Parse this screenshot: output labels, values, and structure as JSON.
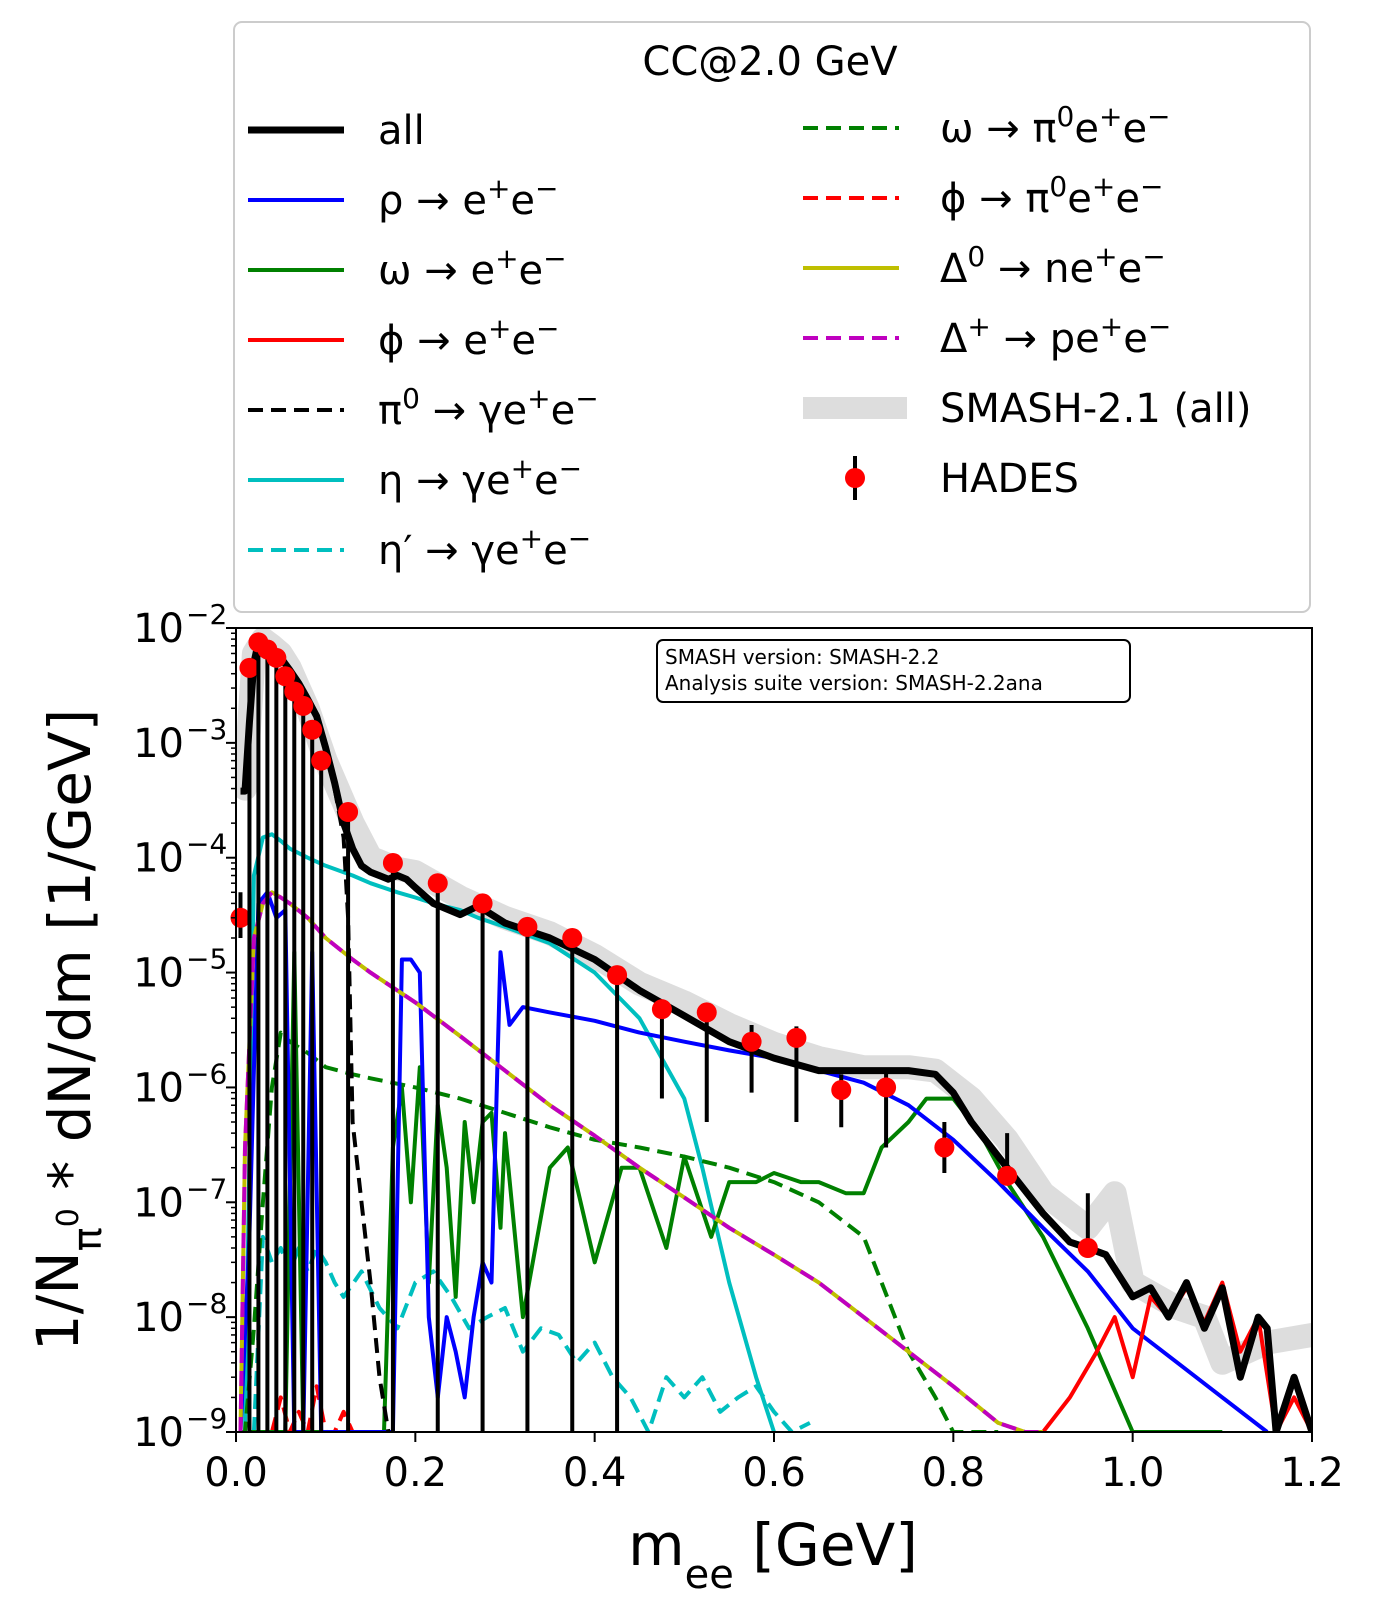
{
  "chart_data": {
    "type": "line",
    "title": "CC@2.0 GeV",
    "xlabel": "m_ee [GeV]",
    "ylabel": "1/N_π0 * dN/dm [1/GeV]",
    "xlim": [
      0.0,
      1.2
    ],
    "ylim_log10": [
      -9,
      -2
    ],
    "yscale": "log",
    "x_ticks": [
      "0.0",
      "0.2",
      "0.4",
      "0.6",
      "0.8",
      "1.0",
      "1.2"
    ],
    "y_ticks": [
      "-9",
      "-8",
      "-7",
      "-6",
      "-5",
      "-4",
      "-3",
      "-2"
    ],
    "legend_placement": "above plot, two columns",
    "annotation": [
      "SMASH version: SMASH-2.2",
      "Analysis suite version: SMASH-2.2ana"
    ],
    "series": [
      {
        "key": "smash21",
        "name": "SMASH-2.1 (all)",
        "color": "#dddddd",
        "style": "band",
        "x": [
          0.01,
          0.02,
          0.03,
          0.04,
          0.05,
          0.06,
          0.08,
          0.1,
          0.13,
          0.15,
          0.18,
          0.2,
          0.25,
          0.3,
          0.35,
          0.4,
          0.45,
          0.5,
          0.55,
          0.6,
          0.65,
          0.7,
          0.75,
          0.78,
          0.82,
          0.86,
          0.9,
          0.95,
          0.98,
          1.0,
          1.05,
          1.08,
          1.1,
          1.15,
          1.2
        ],
        "y": [
          0.0004,
          0.006,
          0.008,
          0.007,
          0.006,
          0.0045,
          0.002,
          0.0007,
          0.0002,
          0.0001,
          8e-05,
          7.5e-05,
          4.5e-05,
          3e-05,
          2.2e-05,
          1.4e-05,
          8e-06,
          5.5e-06,
          3.5e-06,
          2.4e-06,
          1.8e-06,
          1.5e-06,
          1.5e-06,
          1.4e-06,
          8e-07,
          3.5e-07,
          1.2e-07,
          6e-08,
          1.2e-07,
          2e-08,
          1.2e-08,
          1e-08,
          4e-09,
          6e-09,
          7e-09
        ]
      },
      {
        "key": "all",
        "name": "all",
        "color": "#000000",
        "style": "solid-thick",
        "x": [
          0.005,
          0.01,
          0.015,
          0.02,
          0.025,
          0.03,
          0.04,
          0.05,
          0.06,
          0.07,
          0.08,
          0.09,
          0.1,
          0.11,
          0.12,
          0.13,
          0.14,
          0.15,
          0.17,
          0.18,
          0.19,
          0.2,
          0.22,
          0.25,
          0.27,
          0.3,
          0.35,
          0.4,
          0.45,
          0.5,
          0.55,
          0.6,
          0.65,
          0.7,
          0.75,
          0.78,
          0.8,
          0.82,
          0.86,
          0.9,
          0.93,
          0.95,
          0.97,
          1.0,
          1.02,
          1.04,
          1.06,
          1.08,
          1.1,
          1.12,
          1.14,
          1.15,
          1.16,
          1.18,
          1.2
        ],
        "y": [
          0.00038,
          0.00038,
          0.0015,
          0.005,
          0.0075,
          0.0075,
          0.0065,
          0.0055,
          0.0043,
          0.0033,
          0.0024,
          0.0017,
          0.0009,
          0.00045,
          0.0002,
          0.00012,
          8.5e-05,
          7.5e-05,
          6.5e-05,
          7e-05,
          6.5e-05,
          5.5e-05,
          4e-05,
          3.2e-05,
          3.8e-05,
          2.7e-05,
          2e-05,
          1.3e-05,
          7e-06,
          4.2e-06,
          2.5e-06,
          1.8e-06,
          1.4e-06,
          1.4e-06,
          1.4e-06,
          1.3e-06,
          9e-07,
          5e-07,
          2e-07,
          8e-08,
          4.5e-08,
          4e-08,
          3.5e-08,
          1.5e-08,
          1.8e-08,
          1e-08,
          2e-08,
          8e-09,
          1.8e-08,
          3e-09,
          1e-08,
          8e-09,
          1e-09,
          3e-09,
          1e-09
        ]
      },
      {
        "key": "rho",
        "name": "ρ → e⁺e⁻",
        "color": "#0000ff",
        "style": "solid",
        "x": [
          0.005,
          0.015,
          0.025,
          0.035,
          0.045,
          0.055,
          0.065,
          0.075,
          0.085,
          0.095,
          0.105,
          0.115,
          0.125,
          0.135,
          0.145,
          0.155,
          0.165,
          0.175,
          0.185,
          0.195,
          0.205,
          0.215,
          0.225,
          0.235,
          0.245,
          0.255,
          0.265,
          0.275,
          0.285,
          0.295,
          0.305,
          0.32,
          0.35,
          0.4,
          0.45,
          0.5,
          0.55,
          0.6,
          0.65,
          0.7,
          0.75,
          0.8,
          0.85,
          0.9,
          0.95,
          1.0,
          1.05,
          1.1,
          1.15
        ],
        "y": [
          1e-09,
          5e-08,
          4e-05,
          5e-05,
          3e-05,
          3.5e-05,
          1e-09,
          1e-09,
          1.5e-05,
          1e-09,
          1e-09,
          1e-09,
          1e-09,
          1e-09,
          1e-09,
          1e-09,
          1e-09,
          1e-09,
          1.3e-05,
          1.3e-05,
          1e-05,
          1e-08,
          2e-09,
          1e-08,
          5e-09,
          2e-09,
          1e-08,
          3e-08,
          2e-08,
          1.5e-05,
          3.5e-06,
          5e-06,
          4.5e-06,
          3.8e-06,
          3e-06,
          2.5e-06,
          2.1e-06,
          1.8e-06,
          1.4e-06,
          1.1e-06,
          7e-07,
          3.5e-07,
          1.5e-07,
          6e-08,
          2.5e-08,
          8e-09,
          4e-09,
          2e-09,
          1e-09
        ]
      },
      {
        "key": "omega",
        "name": "ω → e⁺e⁻",
        "color": "#008000",
        "style": "solid",
        "x": [
          0.015,
          0.025,
          0.035,
          0.045,
          0.055,
          0.065,
          0.075,
          0.085,
          0.095,
          0.105,
          0.115,
          0.125,
          0.135,
          0.145,
          0.155,
          0.165,
          0.175,
          0.185,
          0.195,
          0.205,
          0.215,
          0.225,
          0.235,
          0.245,
          0.255,
          0.265,
          0.275,
          0.285,
          0.295,
          0.3,
          0.32,
          0.35,
          0.37,
          0.4,
          0.43,
          0.45,
          0.48,
          0.5,
          0.53,
          0.55,
          0.58,
          0.6,
          0.63,
          0.65,
          0.68,
          0.7,
          0.72,
          0.75,
          0.77,
          0.8,
          0.83,
          0.86,
          0.9,
          0.95,
          1.0,
          1.05,
          1.1
        ],
        "y": [
          1e-09,
          1e-09,
          1e-09,
          1e-09,
          1e-09,
          1.5e-05,
          1e-09,
          1e-09,
          1e-09,
          1e-09,
          1e-09,
          1e-09,
          1e-09,
          1e-09,
          1e-09,
          1e-09,
          3e-07,
          1e-06,
          1e-07,
          1.5e-06,
          2e-08,
          7e-07,
          2e-07,
          1.5e-08,
          5e-07,
          1e-07,
          5e-07,
          6e-07,
          6e-08,
          4e-07,
          1e-08,
          2e-07,
          3e-07,
          3e-08,
          2e-07,
          2e-07,
          4e-08,
          2.5e-07,
          5e-08,
          1.5e-07,
          1.5e-07,
          1.8e-07,
          1.5e-07,
          1.5e-07,
          1.2e-07,
          1.2e-07,
          3e-07,
          5e-07,
          8e-07,
          8e-07,
          4e-07,
          1.5e-07,
          5e-08,
          8e-09,
          1e-09,
          1e-09,
          1e-09
        ]
      },
      {
        "key": "phi",
        "name": "ϕ → e⁺e⁻",
        "color": "#ff0000",
        "style": "solid",
        "x": [
          0.9,
          0.93,
          0.96,
          0.98,
          1.0,
          1.02,
          1.04,
          1.06,
          1.08,
          1.1,
          1.12,
          1.14,
          1.16,
          1.18,
          1.2
        ],
        "y": [
          1e-09,
          2e-09,
          5e-09,
          1e-08,
          3e-09,
          1.5e-08,
          1e-08,
          1.8e-08,
          9e-09,
          2e-08,
          5e-09,
          1e-08,
          1e-09,
          2e-09,
          1e-09
        ]
      },
      {
        "key": "pi0",
        "name": "π⁰ → γe⁺e⁻",
        "color": "#000000",
        "style": "dashed",
        "x": [
          0.005,
          0.01,
          0.02,
          0.03,
          0.04,
          0.05,
          0.06,
          0.07,
          0.08,
          0.09,
          0.1,
          0.11,
          0.12,
          0.125,
          0.13,
          0.14,
          0.15,
          0.16,
          0.17
        ],
        "y": [
          0.00038,
          0.00038,
          0.005,
          0.0075,
          0.0065,
          0.0055,
          0.0043,
          0.0033,
          0.0024,
          0.0017,
          0.0009,
          0.0004,
          0.00015,
          3e-05,
          5e-07,
          1e-07,
          2e-08,
          3e-09,
          1e-09
        ]
      },
      {
        "key": "eta",
        "name": "η → γe⁺e⁻",
        "color": "#00bfbf",
        "style": "solid",
        "x": [
          0.01,
          0.02,
          0.03,
          0.04,
          0.05,
          0.06,
          0.08,
          0.1,
          0.13,
          0.15,
          0.18,
          0.2,
          0.22,
          0.25,
          0.27,
          0.3,
          0.35,
          0.4,
          0.45,
          0.5,
          0.52,
          0.55,
          0.58,
          0.6
        ],
        "y": [
          1e-09,
          7e-05,
          0.00015,
          0.00016,
          0.00014,
          0.00012,
          0.0001,
          8.5e-05,
          7e-05,
          6e-05,
          5e-05,
          4.5e-05,
          4e-05,
          3.5e-05,
          3e-05,
          2.5e-05,
          1.8e-05,
          1e-05,
          4e-06,
          8e-07,
          2e-07,
          2e-08,
          3e-09,
          1e-09
        ]
      },
      {
        "key": "etap",
        "name": "η′ → γe⁺e⁻",
        "color": "#00bfbf",
        "style": "dashed",
        "x": [
          0.02,
          0.03,
          0.04,
          0.05,
          0.06,
          0.07,
          0.08,
          0.09,
          0.1,
          0.11,
          0.12,
          0.14,
          0.16,
          0.18,
          0.2,
          0.22,
          0.24,
          0.26,
          0.28,
          0.3,
          0.32,
          0.34,
          0.36,
          0.38,
          0.4,
          0.42,
          0.44,
          0.46,
          0.48,
          0.5,
          0.52,
          0.54,
          0.56,
          0.58,
          0.6,
          0.62,
          0.64
        ],
        "y": [
          1e-09,
          5e-08,
          3e-08,
          4e-08,
          2.5e-08,
          4e-08,
          2.5e-08,
          4e-08,
          3e-08,
          2e-08,
          1.5e-08,
          2.5e-08,
          1.2e-08,
          8e-09,
          2e-08,
          2.5e-08,
          1.5e-08,
          8e-09,
          1e-08,
          1.2e-08,
          5e-09,
          8e-09,
          7e-09,
          4e-09,
          6e-09,
          3e-09,
          2e-09,
          1e-09,
          3e-09,
          2e-09,
          3e-09,
          1.5e-09,
          2e-09,
          2.5e-09,
          1.5e-09,
          1e-09,
          1.2e-09
        ]
      },
      {
        "key": "omega_dalitz",
        "name": "ω → π⁰e⁺e⁻",
        "color": "#008000",
        "style": "dashed",
        "x": [
          0.005,
          0.01,
          0.02,
          0.03,
          0.04,
          0.05,
          0.06,
          0.08,
          0.1,
          0.13,
          0.15,
          0.2,
          0.25,
          0.3,
          0.35,
          0.4,
          0.45,
          0.5,
          0.55,
          0.6,
          0.65,
          0.7,
          0.72,
          0.75,
          0.78,
          0.8,
          0.82,
          0.85
        ],
        "y": [
          1e-09,
          1e-09,
          8e-09,
          1e-07,
          1e-06,
          3e-06,
          2.5e-06,
          2e-06,
          1.5e-06,
          1.3e-06,
          1.2e-06,
          1e-06,
          8e-07,
          6e-07,
          4.5e-07,
          3.5e-07,
          3e-07,
          2.5e-07,
          2e-07,
          1.5e-07,
          1e-07,
          5e-08,
          2e-08,
          5e-09,
          2e-09,
          1e-09,
          1e-09,
          1e-09
        ]
      },
      {
        "key": "phi_dalitz",
        "name": "ϕ → π⁰e⁺e⁻",
        "color": "#ff0000",
        "style": "dashed",
        "x": [
          0.04,
          0.05,
          0.06,
          0.07,
          0.08,
          0.09,
          0.1,
          0.11,
          0.12,
          0.13
        ],
        "y": [
          1e-09,
          2e-09,
          1e-09,
          1.5e-09,
          1e-09,
          2.5e-09,
          1e-09,
          1e-09,
          1.5e-09,
          1e-09
        ]
      },
      {
        "key": "delta0",
        "name": "Δ⁰ → ne⁺e⁻",
        "color": "#bfbf00",
        "style": "solid",
        "x": [
          0.005,
          0.01,
          0.02,
          0.03,
          0.04,
          0.05,
          0.06,
          0.08,
          0.1,
          0.13,
          0.15,
          0.2,
          0.25,
          0.3,
          0.35,
          0.4,
          0.45,
          0.5,
          0.55,
          0.6,
          0.65,
          0.7,
          0.75,
          0.8,
          0.85,
          0.88,
          0.9
        ],
        "y": [
          1e-09,
          3e-07,
          2e-05,
          4e-05,
          5e-05,
          4.5e-05,
          4e-05,
          3e-05,
          2e-05,
          1.3e-05,
          1e-05,
          5.5e-06,
          2.8e-06,
          1.4e-06,
          7e-07,
          3.8e-07,
          2e-07,
          1.1e-07,
          6e-08,
          3.5e-08,
          2e-08,
          1e-08,
          5e-09,
          2.5e-09,
          1.2e-09,
          1e-09,
          1e-09
        ]
      },
      {
        "key": "deltap",
        "name": "Δ⁺ → pe⁺e⁻",
        "color": "#bf00bf",
        "style": "dashed",
        "x": [
          0.005,
          0.01,
          0.02,
          0.03,
          0.04,
          0.05,
          0.06,
          0.08,
          0.1,
          0.13,
          0.15,
          0.2,
          0.25,
          0.3,
          0.35,
          0.4,
          0.45,
          0.5,
          0.55,
          0.6,
          0.65,
          0.7,
          0.75,
          0.8,
          0.85,
          0.88,
          0.9
        ],
        "y": [
          1e-09,
          3e-07,
          2e-05,
          4e-05,
          5e-05,
          4.5e-05,
          4e-05,
          3e-05,
          2e-05,
          1.3e-05,
          1e-05,
          5.5e-06,
          2.8e-06,
          1.4e-06,
          7e-07,
          3.8e-07,
          2e-07,
          1.1e-07,
          6e-08,
          3.5e-08,
          2e-08,
          1e-08,
          5e-09,
          2.5e-09,
          1.2e-09,
          1e-09,
          1e-09
        ]
      },
      {
        "key": "hades",
        "name": "HADES",
        "color": "#ff0000",
        "style": "points",
        "x": [
          0.005,
          0.015,
          0.025,
          0.035,
          0.045,
          0.055,
          0.065,
          0.075,
          0.085,
          0.095,
          0.125,
          0.175,
          0.225,
          0.275,
          0.325,
          0.375,
          0.425,
          0.475,
          0.525,
          0.575,
          0.625,
          0.675,
          0.725,
          0.79,
          0.86,
          0.95
        ],
        "y": [
          3e-05,
          0.0045,
          0.0075,
          0.0065,
          0.0055,
          0.0038,
          0.0028,
          0.0021,
          0.0013,
          0.0007,
          0.00025,
          9e-05,
          6e-05,
          4e-05,
          2.5e-05,
          2e-05,
          9.5e-06,
          4.8e-06,
          4.5e-06,
          2.5e-06,
          2.7e-06,
          9.5e-07,
          1e-06,
          3e-07,
          1.7e-07,
          4e-08
        ],
        "yerr_lo": [
          1e-05,
          0.0045,
          0.0075,
          0.0065,
          0.0055,
          0.0038,
          0.0028,
          0.0021,
          0.0013,
          0.0007,
          0.00025,
          9e-05,
          6e-05,
          4e-05,
          2.5e-05,
          2e-05,
          9.5e-06,
          4e-06,
          4e-06,
          1.6e-06,
          2.2e-06,
          5e-07,
          7e-07,
          1.2e-07,
          2.5e-09,
          1e-09
        ],
        "yerr_hi": [
          5e-05,
          0.0045,
          0.0075,
          0.0065,
          0.0055,
          0.0038,
          0.0028,
          0.0021,
          0.0013,
          0.0007,
          0.00025,
          9e-05,
          6e-05,
          4e-05,
          2.5e-05,
          2e-05,
          9.5e-06,
          5.5e-06,
          5e-06,
          3.5e-06,
          3.4e-06,
          1.3e-06,
          1.4e-06,
          5e-07,
          4e-07,
          1.2e-07
        ]
      }
    ]
  },
  "legend": {
    "title": "CC@2.0 GeV",
    "left": [
      "all",
      "ρ → e⁺e⁻",
      "ω → e⁺e⁻",
      "ϕ → e⁺e⁻",
      "π⁰ → γe⁺e⁻",
      "η → γe⁺e⁻",
      "η′ → γe⁺e⁻"
    ],
    "right": [
      "ω → π⁰e⁺e⁻",
      "ϕ → π⁰e⁺e⁻",
      "Δ⁰ → ne⁺e⁻",
      "Δ⁺ → pe⁺e⁻",
      "SMASH-2.1 (all)",
      "HADES"
    ]
  }
}
